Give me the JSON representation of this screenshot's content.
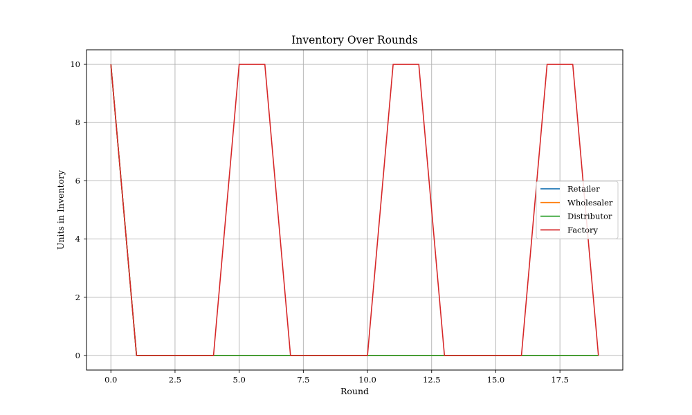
{
  "chart_data": {
    "type": "line",
    "title": "Inventory Over Rounds",
    "xlabel": "Round",
    "ylabel": "Units in Inventory",
    "xlim": [
      -0.95,
      19.95
    ],
    "ylim": [
      -0.5,
      10.5
    ],
    "x_ticks": [
      0.0,
      2.5,
      5.0,
      7.5,
      10.0,
      12.5,
      15.0,
      17.5
    ],
    "x_tick_labels": [
      "0.0",
      "2.5",
      "5.0",
      "7.5",
      "10.0",
      "12.5",
      "15.0",
      "17.5"
    ],
    "y_ticks": [
      0,
      2,
      4,
      6,
      8,
      10
    ],
    "y_tick_labels": [
      "0",
      "2",
      "4",
      "6",
      "8",
      "10"
    ],
    "grid": true,
    "legend_position": "center-right",
    "x": [
      0,
      1,
      2,
      3,
      4,
      5,
      6,
      7,
      8,
      9,
      10,
      11,
      12,
      13,
      14,
      15,
      16,
      17,
      18,
      19
    ],
    "series": [
      {
        "name": "Retailer",
        "color": "#1f77b4",
        "values": [
          10,
          0,
          0,
          0,
          0,
          0,
          0,
          0,
          0,
          0,
          0,
          0,
          0,
          0,
          0,
          0,
          0,
          0,
          0,
          0
        ]
      },
      {
        "name": "Wholesaler",
        "color": "#ff7f0e",
        "values": [
          10,
          0,
          0,
          0,
          0,
          0,
          0,
          0,
          0,
          0,
          0,
          0,
          0,
          0,
          0,
          0,
          0,
          0,
          0,
          0
        ]
      },
      {
        "name": "Distributor",
        "color": "#2ca02c",
        "values": [
          10,
          0,
          0,
          0,
          0,
          0,
          0,
          0,
          0,
          0,
          0,
          0,
          0,
          0,
          0,
          0,
          0,
          0,
          0,
          0
        ]
      },
      {
        "name": "Factory",
        "color": "#d62728",
        "values": [
          10,
          0,
          0,
          0,
          0,
          10,
          10,
          0,
          0,
          0,
          0,
          10,
          10,
          0,
          0,
          0,
          0,
          10,
          10,
          0
        ]
      }
    ]
  }
}
